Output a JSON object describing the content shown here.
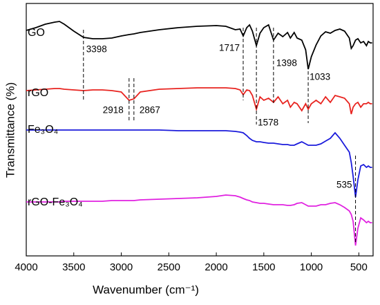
{
  "chart_data": {
    "type": "line",
    "xlabel": "Wavenumber (cm⁻¹)",
    "ylabel": "Transmittance (%)",
    "xlim": [
      4000,
      350
    ],
    "ylim": [
      0,
      365
    ],
    "xticks": [
      4000,
      3500,
      3000,
      2500,
      2000,
      1500,
      1000,
      500
    ],
    "x": [
      4000,
      3900,
      3800,
      3700,
      3650,
      3600,
      3500,
      3398,
      3300,
      3200,
      3100,
      3000,
      2918,
      2867,
      2800,
      2600,
      2400,
      2200,
      2000,
      1900,
      1800,
      1750,
      1717,
      1680,
      1650,
      1620,
      1578,
      1540,
      1500,
      1450,
      1398,
      1350,
      1300,
      1250,
      1220,
      1180,
      1150,
      1100,
      1060,
      1033,
      1000,
      950,
      900,
      850,
      800,
      750,
      700,
      650,
      600,
      580,
      560,
      535,
      510,
      480,
      450,
      420,
      400,
      380,
      360
    ],
    "series": [
      {
        "name": "GO",
        "color": "#000000",
        "values": [
          326,
          330,
          335,
          338,
          339,
          335,
          325,
          316,
          314,
          314,
          315,
          318,
          320,
          321,
          323,
          327,
          330,
          332,
          333,
          332,
          327,
          328,
          318,
          330,
          334,
          325,
          304,
          322,
          330,
          334,
          312,
          322,
          317,
          323,
          315,
          323,
          315,
          312,
          298,
          270,
          288,
          305,
          318,
          324,
          322,
          326,
          328,
          325,
          315,
          300,
          304,
          312,
          314,
          308,
          310,
          304,
          310,
          308,
          308
        ]
      },
      {
        "name": "rGO",
        "color": "#e8231f",
        "values": [
          239,
          240,
          241,
          242,
          242,
          241,
          240,
          239,
          240,
          240,
          239,
          237,
          225,
          227,
          237,
          241,
          242,
          243,
          243,
          243,
          242,
          240,
          233,
          240,
          239,
          232,
          212,
          230,
          225,
          228,
          222,
          230,
          220,
          225,
          215,
          222,
          220,
          210,
          220,
          212,
          220,
          225,
          220,
          230,
          222,
          232,
          230,
          228,
          220,
          205,
          215,
          220,
          222,
          215,
          220,
          220,
          222,
          220,
          220
        ]
      },
      {
        "name": "Fe₃O₄",
        "color": "#1a1adb",
        "values": [
          182,
          182,
          182,
          182,
          182,
          182,
          182,
          182,
          182,
          182,
          182,
          182,
          182,
          182,
          182,
          182,
          181,
          181,
          181,
          181,
          180,
          179,
          178,
          174,
          170,
          167,
          165,
          165,
          164,
          163,
          163,
          162,
          161,
          161,
          160,
          160,
          162,
          165,
          162,
          160,
          160,
          160,
          162,
          166,
          170,
          178,
          170,
          160,
          150,
          135,
          115,
          85,
          110,
          130,
          132,
          128,
          130,
          128,
          128
        ]
      },
      {
        "name": "rGO-Fe₃O₄",
        "color": "#e020e0",
        "values": [
          78,
          78,
          78,
          78,
          78,
          79,
          79,
          79,
          79,
          79,
          80,
          80,
          80,
          80,
          81,
          82,
          83,
          84,
          86,
          88,
          87,
          85,
          83,
          81,
          80,
          78,
          77,
          76,
          76,
          75,
          74,
          74,
          74,
          73,
          73,
          74,
          76,
          77,
          74,
          72,
          72,
          72,
          74,
          74,
          76,
          77,
          74,
          70,
          65,
          60,
          50,
          15,
          40,
          55,
          52,
          48,
          50,
          48,
          48
        ]
      }
    ],
    "peaks": [
      3398,
      2918,
      2867,
      1717,
      1578,
      1398,
      1033,
      535
    ]
  }
}
